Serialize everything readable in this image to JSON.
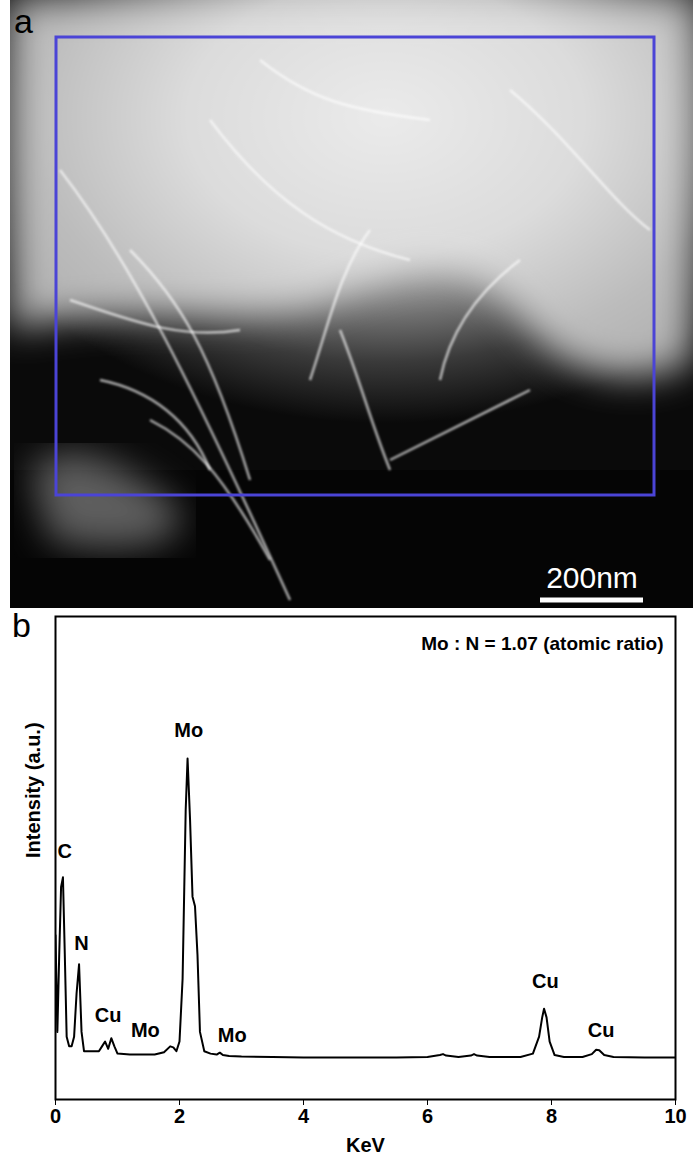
{
  "image_panel": {
    "panel_label": "a",
    "scale_bar": "200nm"
  },
  "chart_data": {
    "type": "line",
    "panel_label": "b",
    "x_label": "KeV",
    "y_label": "Intensity (a.u.)",
    "ratio_label": "Mo : N = 1.07 (atomic ratio)",
    "xlim": [
      0,
      10
    ],
    "xticks": [
      0,
      2,
      4,
      6,
      8,
      10
    ],
    "ylim": [
      0,
      100
    ],
    "yticks": [],
    "tick_labels": "x",
    "color": "#000000",
    "x": [
      0,
      0.03,
      0.06,
      0.09,
      0.12,
      0.15,
      0.18,
      0.22,
      0.26,
      0.3,
      0.34,
      0.38,
      0.42,
      0.46,
      0.5,
      0.6,
      0.7,
      0.75,
      0.8,
      0.85,
      0.9,
      0.95,
      1.0,
      1.2,
      1.4,
      1.6,
      1.75,
      1.85,
      1.9,
      1.95,
      2.0,
      2.05,
      2.1,
      2.13,
      2.17,
      2.21,
      2.25,
      2.29,
      2.33,
      2.4,
      2.5,
      2.6,
      2.65,
      2.7,
      2.8,
      3.0,
      3.5,
      4,
      4.5,
      5,
      5.5,
      6.0,
      6.2,
      6.25,
      6.3,
      6.5,
      6.7,
      6.75,
      6.8,
      7.0,
      7.5,
      7.7,
      7.8,
      7.85,
      7.88,
      7.92,
      7.97,
      8.05,
      8.2,
      8.5,
      8.65,
      8.72,
      8.77,
      8.85,
      9.0,
      9.5,
      10
    ],
    "values": [
      34,
      14,
      30,
      44,
      46,
      30,
      13,
      11,
      11,
      13,
      22,
      28,
      14,
      10,
      10,
      10,
      10,
      11,
      12,
      10.5,
      12.7,
      11,
      9.5,
      9.3,
      9.3,
      9.3,
      9.8,
      11,
      10.8,
      10,
      12,
      25,
      60,
      70.6,
      58,
      42,
      40,
      30,
      14,
      10,
      9.5,
      9.3,
      9.7,
      9.2,
      9,
      8.9,
      8.8,
      8.7,
      8.7,
      8.7,
      8.7,
      8.8,
      9.2,
      9.4,
      9.1,
      8.8,
      9.1,
      9.4,
      9.1,
      8.8,
      8.8,
      9.5,
      13,
      17,
      18.8,
      17,
      12,
      9.2,
      8.8,
      8.8,
      9.4,
      10.3,
      10.2,
      9.2,
      8.8,
      8.7,
      8.7
    ],
    "annotations": [
      {
        "text": "C",
        "x": 0.15,
        "y": 50
      },
      {
        "text": "N",
        "x": 0.42,
        "y": 31
      },
      {
        "text": "Cu",
        "x": 0.85,
        "y": 16
      },
      {
        "text": "Mo",
        "x": 1.45,
        "y": 13
      },
      {
        "text": "Mo",
        "x": 2.15,
        "y": 75
      },
      {
        "text": "Mo",
        "x": 2.85,
        "y": 12
      },
      {
        "text": "Cu",
        "x": 7.9,
        "y": 23
      },
      {
        "text": "Cu",
        "x": 8.8,
        "y": 13
      }
    ]
  }
}
